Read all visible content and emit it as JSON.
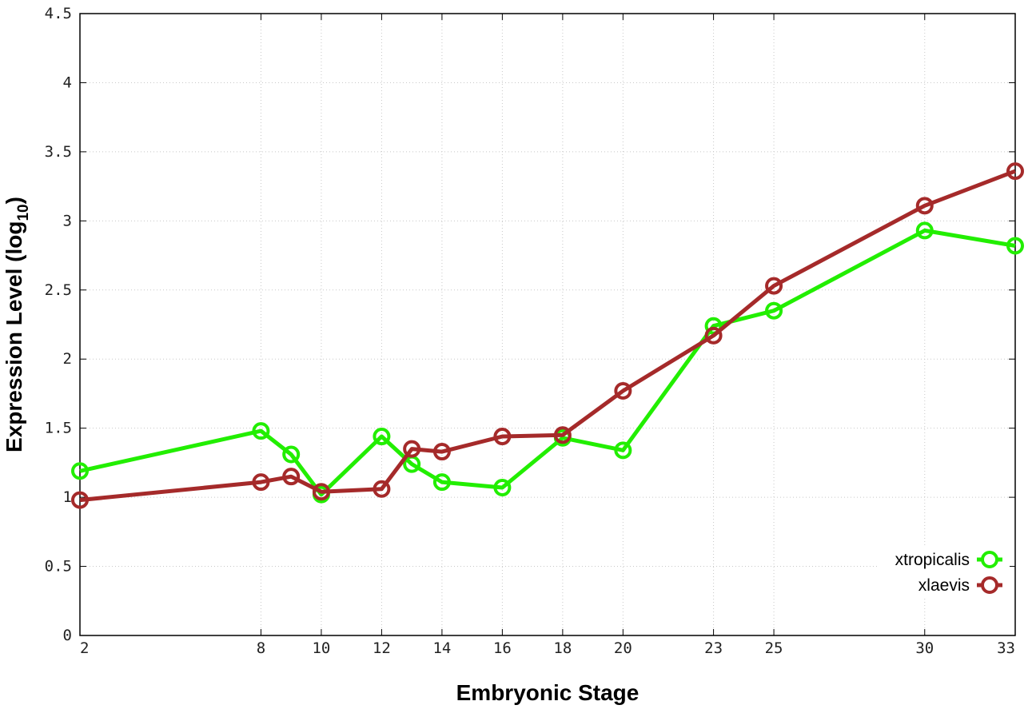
{
  "chart_data": {
    "type": "line",
    "title": "",
    "xlabel": "Embryonic Stage",
    "ylabel_main": "Expression Level (log",
    "ylabel_sub": "10",
    "ylabel_close": ")",
    "x_ticks": [
      2,
      8,
      10,
      12,
      14,
      16,
      18,
      20,
      23,
      25,
      30,
      33
    ],
    "y_ticks": [
      "0",
      "0.5",
      "1",
      "1.5",
      "2",
      "2.5",
      "3",
      "3.5",
      "4",
      "4.5"
    ],
    "xlim": [
      2,
      33
    ],
    "ylim": [
      0,
      4.5
    ],
    "grid": true,
    "legend_position": "bottom-right",
    "series": [
      {
        "name": "xtropicalis",
        "color": "#22ee00",
        "x": [
          2,
          8,
          9,
          10,
          12,
          13,
          14,
          16,
          18,
          20,
          23,
          25,
          30,
          33
        ],
        "y": [
          1.19,
          1.48,
          1.31,
          1.02,
          1.44,
          1.24,
          1.11,
          1.07,
          1.43,
          1.34,
          2.24,
          2.35,
          2.93,
          2.82
        ]
      },
      {
        "name": "xlaevis",
        "color": "#a52a2a",
        "x": [
          2,
          8,
          9,
          10,
          12,
          13,
          14,
          16,
          18,
          20,
          23,
          25,
          30,
          33
        ],
        "y": [
          0.98,
          1.11,
          1.15,
          1.04,
          1.06,
          1.35,
          1.33,
          1.44,
          1.45,
          1.77,
          2.17,
          2.53,
          3.11,
          3.36
        ]
      }
    ]
  }
}
